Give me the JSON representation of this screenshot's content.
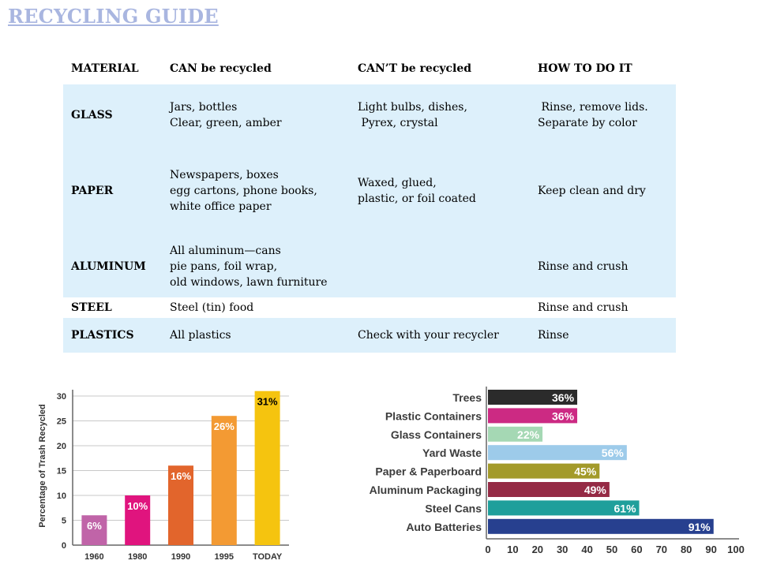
{
  "title": "RECYCLING GUIDE",
  "table": {
    "headers": [
      "MATERIAL",
      "CAN be recycled",
      "CAN’T be recycled",
      "HOW TO DO IT"
    ],
    "rows": [
      {
        "material": "GLASS",
        "can": [
          "Jars, bottles",
          "Clear, green, amber"
        ],
        "cant": [
          "Light bulbs, dishes,",
          " Pyrex, crystal"
        ],
        "how": [
          " Rinse, remove lids.",
          "Separate by color"
        ]
      },
      {
        "material": "PAPER",
        "can": [
          "Newspapers, boxes",
          "egg cartons, phone books,",
          "white office paper"
        ],
        "cant": [
          "Waxed, glued,",
          "plastic, or foil coated"
        ],
        "how": [
          "Keep clean and dry"
        ]
      },
      {
        "material": "ALUMINUM",
        "can": [
          "All aluminum—cans",
          "pie pans, foil wrap,",
          "old windows, lawn furniture"
        ],
        "cant": [],
        "how": [
          "Rinse and crush"
        ]
      },
      {
        "material": "STEEL",
        "can": [
          "Steel (tin) food"
        ],
        "cant": [],
        "how": [
          "Rinse and crush"
        ]
      },
      {
        "material": "PLASTICS",
        "can": [
          "All plastics"
        ],
        "cant": [
          "Check with your recycler"
        ],
        "how": [
          "Rinse"
        ]
      }
    ]
  },
  "chart_data": [
    {
      "type": "bar",
      "categories": [
        "1960",
        "1980",
        "1990",
        "1995",
        "TODAY"
      ],
      "values": [
        6,
        10,
        16,
        26,
        31
      ],
      "data_labels": [
        "6%",
        "10%",
        "16%",
        "26%",
        "31%"
      ],
      "ylabel": "Percentage of Trash Recycled",
      "ylim": [
        0,
        30
      ],
      "yticks": [
        "0",
        "5",
        "10",
        "15",
        "20",
        "25",
        "30"
      ],
      "colors": [
        "#c064a8",
        "#e0147e",
        "#e2652c",
        "#f39a33",
        "#f5c40f"
      ],
      "grid": true
    },
    {
      "type": "bar",
      "orientation": "horizontal",
      "categories": [
        "Trees",
        "Plastic Containers",
        "Glass Containers",
        "Yard Waste",
        "Paper & Paperboard",
        "Aluminum Packaging",
        "Steel Cans",
        "Auto Batteries"
      ],
      "values": [
        36,
        36,
        22,
        56,
        45,
        49,
        61,
        91
      ],
      "data_labels": [
        "36%",
        "36%",
        "22%",
        "56%",
        "45%",
        "49%",
        "61%",
        "91%"
      ],
      "xlim": [
        0,
        100
      ],
      "xticks": [
        "0",
        "10",
        "20",
        "30",
        "40",
        "50",
        "60",
        "70",
        "80",
        "90",
        "100"
      ],
      "colors": [
        "#2b2b2b",
        "#cc2a83",
        "#a5d8b4",
        "#9dcbea",
        "#a39a2a",
        "#952a45",
        "#1f9f9b",
        "#27408f"
      ]
    }
  ]
}
